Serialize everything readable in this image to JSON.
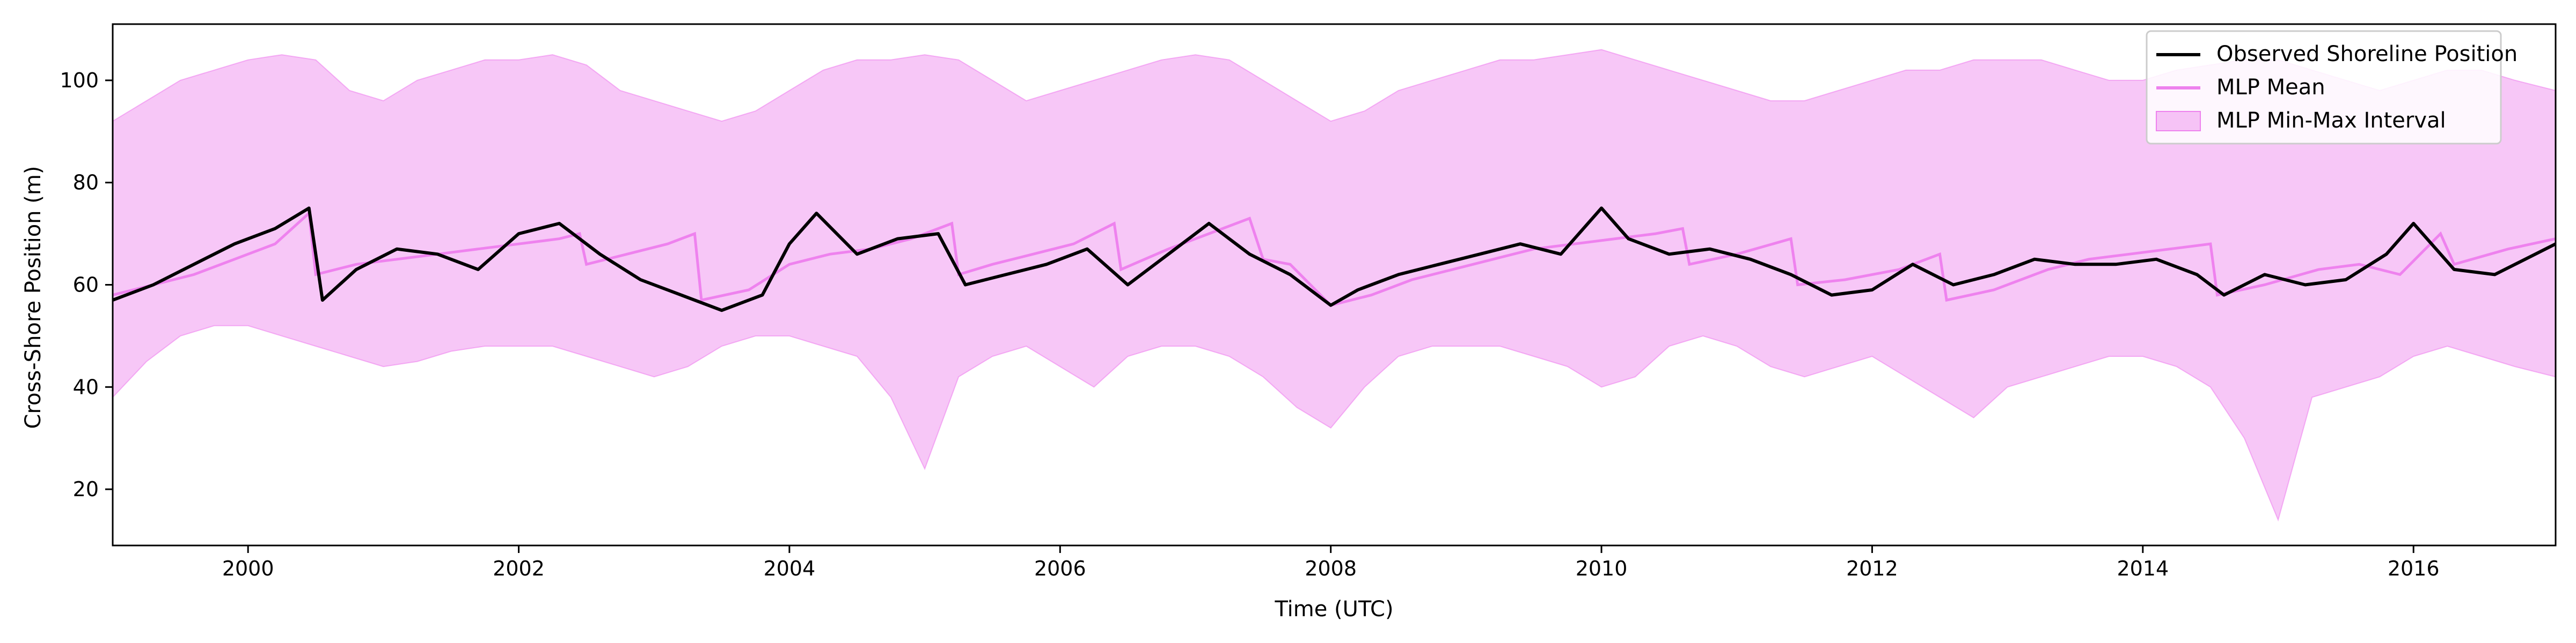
{
  "chart_data": {
    "type": "line",
    "title": "",
    "xlabel": "Time (UTC)",
    "ylabel": "Cross-Shore Position (m)",
    "xlim": [
      1999.0,
      2017.05
    ],
    "ylim": [
      9,
      111
    ],
    "xticks": [
      2000,
      2002,
      2004,
      2006,
      2008,
      2010,
      2012,
      2014,
      2016
    ],
    "yticks": [
      20,
      40,
      60,
      80,
      100
    ],
    "grid": false,
    "legend_position": "top-right",
    "colors": {
      "observed": "#000000",
      "mean": "#ee82ee",
      "interval": "#ee82ee"
    },
    "series": [
      {
        "name": "Observed Shoreline Position",
        "kind": "line",
        "x": [
          1999.0,
          1999.3,
          1999.6,
          1999.9,
          2000.2,
          2000.45,
          2000.55,
          2000.8,
          2001.1,
          2001.4,
          2001.7,
          2002.0,
          2002.3,
          2002.6,
          2002.9,
          2003.2,
          2003.5,
          2003.8,
          2004.0,
          2004.2,
          2004.5,
          2004.8,
          2005.1,
          2005.3,
          2005.6,
          2005.9,
          2006.2,
          2006.5,
          2006.8,
          2007.1,
          2007.4,
          2007.7,
          2008.0,
          2008.2,
          2008.5,
          2008.8,
          2009.1,
          2009.4,
          2009.7,
          2010.0,
          2010.2,
          2010.5,
          2010.8,
          2011.1,
          2011.4,
          2011.7,
          2012.0,
          2012.3,
          2012.6,
          2012.9,
          2013.2,
          2013.5,
          2013.8,
          2014.1,
          2014.4,
          2014.6,
          2014.9,
          2015.2,
          2015.5,
          2015.8,
          2016.0,
          2016.3,
          2016.6,
          2016.9,
          2017.05
        ],
        "y": [
          57,
          60,
          64,
          68,
          71,
          75,
          57,
          63,
          67,
          66,
          63,
          70,
          72,
          66,
          61,
          58,
          55,
          58,
          68,
          74,
          66,
          69,
          70,
          60,
          62,
          64,
          67,
          60,
          66,
          72,
          66,
          62,
          56,
          59,
          62,
          64,
          66,
          68,
          66,
          75,
          69,
          66,
          67,
          65,
          62,
          58,
          59,
          64,
          60,
          62,
          65,
          64,
          64,
          65,
          62,
          58,
          62,
          60,
          61,
          66,
          72,
          63,
          62,
          66,
          68
        ]
      },
      {
        "name": "MLP Mean",
        "kind": "line",
        "x": [
          1999.0,
          1999.3,
          1999.6,
          1999.9,
          2000.2,
          2000.45,
          2000.5,
          2000.8,
          2001.1,
          2001.4,
          2001.7,
          2002.0,
          2002.3,
          2002.45,
          2002.5,
          2002.8,
          2003.1,
          2003.3,
          2003.35,
          2003.7,
          2004.0,
          2004.3,
          2004.6,
          2004.9,
          2005.2,
          2005.25,
          2005.5,
          2005.8,
          2006.1,
          2006.4,
          2006.45,
          2006.8,
          2007.1,
          2007.4,
          2007.5,
          2007.7,
          2008.0,
          2008.3,
          2008.6,
          2008.9,
          2009.2,
          2009.5,
          2009.8,
          2010.1,
          2010.4,
          2010.6,
          2010.65,
          2011.0,
          2011.4,
          2011.45,
          2011.8,
          2012.2,
          2012.5,
          2012.55,
          2012.9,
          2013.3,
          2013.6,
          2013.9,
          2014.2,
          2014.5,
          2014.55,
          2014.9,
          2015.3,
          2015.6,
          2015.9,
          2016.2,
          2016.3,
          2016.7,
          2017.05
        ],
        "y": [
          58,
          60,
          62,
          65,
          68,
          74,
          62,
          64,
          65,
          66,
          67,
          68,
          69,
          70,
          64,
          66,
          68,
          70,
          57,
          59,
          64,
          66,
          67,
          69,
          72,
          62,
          64,
          66,
          68,
          72,
          63,
          67,
          70,
          73,
          65,
          64,
          56,
          58,
          61,
          63,
          65,
          67,
          68,
          69,
          70,
          71,
          64,
          66,
          69,
          60,
          61,
          63,
          66,
          57,
          59,
          63,
          65,
          66,
          67,
          68,
          58,
          60,
          63,
          64,
          62,
          70,
          64,
          67,
          69
        ]
      },
      {
        "name": "MLP Min-Max Interval",
        "kind": "band",
        "x": [
          1999.0,
          1999.25,
          1999.5,
          1999.75,
          2000.0,
          2000.25,
          2000.5,
          2000.75,
          2001.0,
          2001.25,
          2001.5,
          2001.75,
          2002.0,
          2002.25,
          2002.5,
          2002.75,
          2003.0,
          2003.25,
          2003.5,
          2003.75,
          2004.0,
          2004.25,
          2004.5,
          2004.75,
          2005.0,
          2005.25,
          2005.5,
          2005.75,
          2006.0,
          2006.25,
          2006.5,
          2006.75,
          2007.0,
          2007.25,
          2007.5,
          2007.75,
          2008.0,
          2008.25,
          2008.5,
          2008.75,
          2009.0,
          2009.25,
          2009.5,
          2009.75,
          2010.0,
          2010.25,
          2010.5,
          2010.75,
          2011.0,
          2011.25,
          2011.5,
          2011.75,
          2012.0,
          2012.25,
          2012.5,
          2012.75,
          2013.0,
          2013.25,
          2013.5,
          2013.75,
          2014.0,
          2014.25,
          2014.5,
          2014.75,
          2015.0,
          2015.25,
          2015.5,
          2015.75,
          2016.0,
          2016.25,
          2016.5,
          2016.75,
          2017.05
        ],
        "upper": [
          92,
          96,
          100,
          102,
          104,
          105,
          104,
          98,
          96,
          100,
          102,
          104,
          104,
          105,
          103,
          98,
          96,
          94,
          92,
          94,
          98,
          102,
          104,
          104,
          105,
          104,
          100,
          96,
          98,
          100,
          102,
          104,
          105,
          104,
          100,
          96,
          92,
          94,
          98,
          100,
          102,
          104,
          104,
          105,
          106,
          104,
          102,
          100,
          98,
          96,
          96,
          98,
          100,
          102,
          102,
          104,
          104,
          104,
          102,
          100,
          100,
          102,
          103,
          104,
          104,
          102,
          100,
          98,
          100,
          102,
          102,
          100,
          98
        ],
        "lower": [
          38,
          45,
          50,
          52,
          52,
          50,
          48,
          46,
          44,
          45,
          47,
          48,
          48,
          48,
          46,
          44,
          42,
          44,
          48,
          50,
          50,
          48,
          46,
          38,
          24,
          42,
          46,
          48,
          44,
          40,
          46,
          48,
          48,
          46,
          42,
          36,
          32,
          40,
          46,
          48,
          48,
          48,
          46,
          44,
          40,
          42,
          48,
          50,
          48,
          44,
          42,
          44,
          46,
          42,
          38,
          34,
          40,
          42,
          44,
          46,
          46,
          44,
          40,
          30,
          14,
          38,
          40,
          42,
          46,
          48,
          46,
          44,
          42
        ]
      }
    ]
  }
}
